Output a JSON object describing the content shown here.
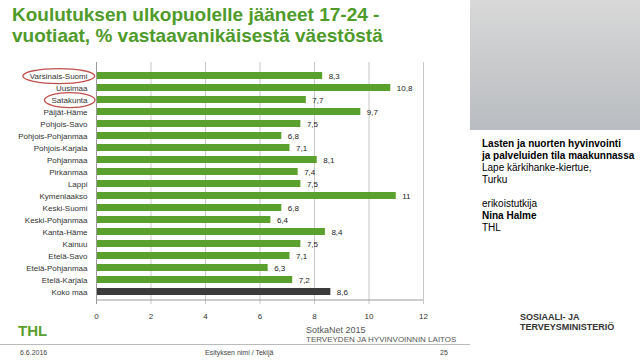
{
  "chart_data": {
    "type": "bar",
    "orientation": "horizontal",
    "title": "Koulutuksen ulkopuolelle jääneet 17-24 -vuotiaat, % vastaavanikäisestä väestöstä",
    "categories": [
      "Varsinais-Suomi",
      "Uusimaa",
      "Satakunta",
      "Päijät-Häme",
      "Pohjois-Savo",
      "Pohjois-Pohjanmaa",
      "Pohjois-Karjala",
      "Pohjanmaa",
      "Pirkanmaa",
      "Lappi",
      "Kymenlaakso",
      "Keski-Suomi",
      "Keski-Pohjanmaa",
      "Kanta-Häme",
      "Kainuu",
      "Etelä-Savo",
      "Etelä-Pohjanmaa",
      "Etelä-Karjala",
      "Koko maa"
    ],
    "values": [
      8.3,
      10.8,
      7.7,
      9.7,
      7.5,
      6.8,
      7.1,
      8.1,
      7.4,
      7.5,
      11,
      6.8,
      6.4,
      8.4,
      7.5,
      7.1,
      6.3,
      7.2,
      8.6
    ],
    "value_labels": [
      "8,3",
      "10,8",
      "7,7",
      "9,7",
      "7,5",
      "6,8",
      "7,1",
      "8,1",
      "7,4",
      "7,5",
      "11",
      "6,8",
      "6,4",
      "8,4",
      "7,5",
      "7,1",
      "6,3",
      "7,2",
      "8,6"
    ],
    "colors": [
      "#5aa02c",
      "#5aa02c",
      "#5aa02c",
      "#5aa02c",
      "#5aa02c",
      "#5aa02c",
      "#5aa02c",
      "#5aa02c",
      "#5aa02c",
      "#5aa02c",
      "#5aa02c",
      "#5aa02c",
      "#5aa02c",
      "#5aa02c",
      "#5aa02c",
      "#5aa02c",
      "#5aa02c",
      "#5aa02c",
      "#3b3b3b"
    ],
    "highlighted": [
      "Varsinais-Suomi",
      "Satakunta"
    ],
    "xlim": [
      0,
      12
    ],
    "xticks": [
      0,
      2,
      4,
      6,
      8,
      10,
      12
    ],
    "grid": true,
    "data_labels": true,
    "source": [
      "SotkaNet 2015",
      "TERVEYDEN JA HYVINVOINNIN LAITOS"
    ]
  },
  "slide": {
    "side_text": {
      "heading": [
        "Lasten ja nuorten hyvinvointi",
        "ja palveluiden tila maakunnassa"
      ],
      "event": [
        "Lape kärkihanke-kiertue,",
        "Turku"
      ],
      "role": "erikoistutkija",
      "name": "Nina Halme",
      "org": "THL"
    },
    "footer": {
      "date": "6.6.2016",
      "presentation": "Esityksen nimi / Tekijä",
      "page": "25"
    },
    "logos": {
      "left": "THL",
      "right": [
        "SOSIAALI- JA",
        "TERVEYSMINISTERIÖ"
      ]
    }
  }
}
